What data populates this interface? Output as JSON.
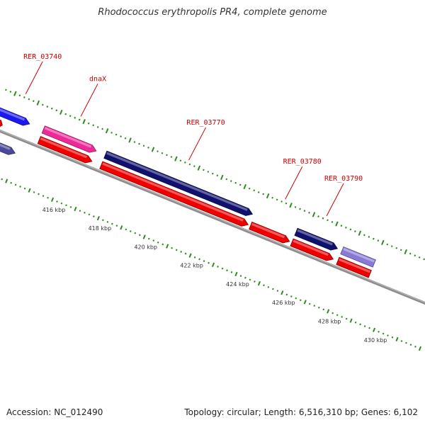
{
  "title": "Rhodococcus erythropolis PR4, complete genome",
  "footer": {
    "accession": "Accession: NC_012490",
    "stats": "Topology: circular; Length: 6,516,310 bp; Genes: 6,102"
  },
  "colors": {
    "background": "#ffffff",
    "backbone": "#8c8c8c",
    "tick": "#2e8b1e",
    "label": "#cc0000",
    "cds_red": "#ee0000",
    "cds_navy": "#10106e",
    "cds_blue": "#1a1aee",
    "cds_slate": "#4a4a9a",
    "cds_pink": "#ee2a9a",
    "cds_lavender": "#8a7ad8"
  },
  "axis": {
    "unit": "kbp",
    "view_start": 413.0,
    "view_end": 431.5,
    "tick_labels": [
      {
        "kbp": 416,
        "text": "416 kbp"
      },
      {
        "kbp": 418,
        "text": "418 kbp"
      },
      {
        "kbp": 420,
        "text": "420 kbp"
      },
      {
        "kbp": 422,
        "text": "422 kbp"
      },
      {
        "kbp": 424,
        "text": "424 kbp"
      },
      {
        "kbp": 426,
        "text": "426 kbp"
      },
      {
        "kbp": 428,
        "text": "428 kbp"
      },
      {
        "kbp": 430,
        "text": "430 kbp"
      }
    ]
  },
  "features": [
    {
      "track": "gene",
      "start": 412.6,
      "end": 413.0,
      "color": "cds_red",
      "arrow": true
    },
    {
      "track": "cds",
      "start": 412.6,
      "end": 414.0,
      "color": "cds_blue",
      "arrow": true
    },
    {
      "track": "cds2",
      "start": 412.6,
      "end": 413.9,
      "color": "cds_slate",
      "arrow": true
    },
    {
      "track": "cds",
      "start": 414.6,
      "end": 416.9,
      "color": "cds_pink",
      "arrow": true
    },
    {
      "track": "gene",
      "start": 414.6,
      "end": 416.9,
      "color": "cds_red",
      "arrow": true
    },
    {
      "track": "cds",
      "start": 417.3,
      "end": 423.7,
      "color": "cds_navy",
      "arrow": true
    },
    {
      "track": "gene",
      "start": 417.3,
      "end": 423.7,
      "color": "cds_red",
      "arrow": true
    },
    {
      "track": "gene",
      "start": 423.8,
      "end": 425.5,
      "color": "cds_red",
      "arrow": true
    },
    {
      "track": "cds",
      "start": 425.6,
      "end": 427.4,
      "color": "cds_navy",
      "arrow": true
    },
    {
      "track": "gene",
      "start": 425.6,
      "end": 427.4,
      "color": "cds_red",
      "arrow": true
    },
    {
      "track": "cds",
      "start": 427.6,
      "end": 429.0,
      "color": "cds_lavender",
      "arrow": false
    },
    {
      "track": "gene",
      "start": 427.6,
      "end": 429.0,
      "color": "cds_red",
      "arrow": false
    }
  ],
  "labels": [
    {
      "text": "RER_03740",
      "color": "#cc0000",
      "pos": 413.4
    },
    {
      "text": "dnaX",
      "color": "#cc0000",
      "pos": 415.8
    },
    {
      "text": "RER_03770",
      "color": "#cc0000",
      "pos": 420.5
    },
    {
      "text": "RER_03780",
      "color": "#cc0000",
      "pos": 424.7
    },
    {
      "text": "RER_03790",
      "color": "#cc0000",
      "pos": 426.5
    }
  ]
}
